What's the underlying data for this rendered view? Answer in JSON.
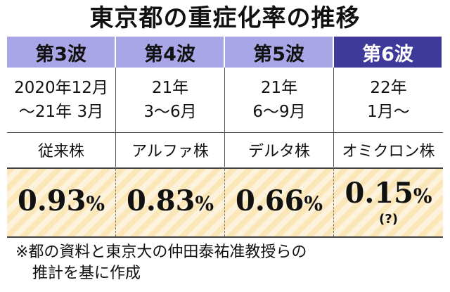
{
  "title": "東京都の重症化率の推移",
  "colors": {
    "wave_light": "#a8a6e6",
    "wave_dark": "#3f3a9a",
    "stripe_a": "#fbe6b8",
    "stripe_b": "#fdf3dc"
  },
  "chart_data": {
    "type": "table",
    "title": "東京都の重症化率の推移",
    "columns": [
      {
        "wave": "第3波",
        "period": [
          "2020年12月",
          "～21年 3月"
        ],
        "strain": "従来株",
        "rate": "0.93",
        "unit": "%",
        "note": ""
      },
      {
        "wave": "第4波",
        "period": [
          "21年",
          "3～6月"
        ],
        "strain": "アルファ株",
        "rate": "0.83",
        "unit": "%",
        "note": ""
      },
      {
        "wave": "第5波",
        "period": [
          "21年",
          "6～9月"
        ],
        "strain": "デルタ株",
        "rate": "0.66",
        "unit": "%",
        "note": ""
      },
      {
        "wave": "第6波",
        "period": [
          "22年",
          "1月～"
        ],
        "strain": "オミクロン株",
        "rate": "0.15",
        "unit": "%",
        "note": "(?)"
      }
    ],
    "values": [
      0.93,
      0.83,
      0.66,
      0.15
    ]
  },
  "footnote": {
    "line1": "※都の資料と東京大の仲田泰祐准教授らの",
    "line2": "推計を基に作成"
  }
}
